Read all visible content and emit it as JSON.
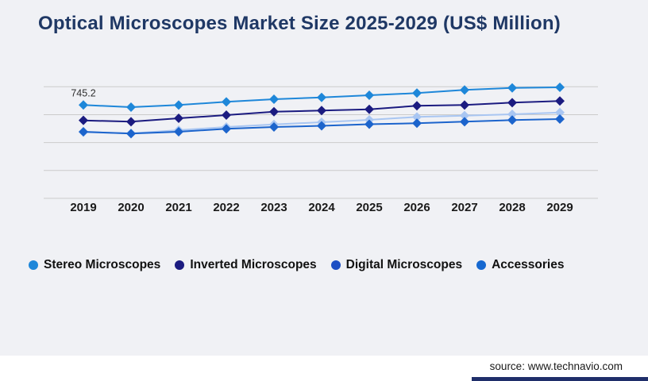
{
  "title": "Optical Microscopes Market Size 2025-2029 (US$ Million)",
  "source_text": "source: www.technavio.com",
  "theme": {
    "background": "#f0f1f5",
    "title_color": "#1f3865",
    "grid_color": "#cbcbcb",
    "axis_label_color": "#1a1a1a",
    "legend_text_color": "#111111",
    "annotation_color": "#2e2e2e",
    "footer_bar_color": "#1f2e6a",
    "footer_bg": "#ffffff"
  },
  "chart_data": {
    "type": "line",
    "title": "Optical Microscopes Market Size 2025-2029 (US$ Million)",
    "x": [
      "2019",
      "2020",
      "2021",
      "2022",
      "2023",
      "2024",
      "2025",
      "2026",
      "2027",
      "2028",
      "2029"
    ],
    "xlabel": "",
    "ylabel": "US$ Million",
    "ylim": [
      0,
      891
    ],
    "gridline_count": 5,
    "y_axis_labels_visible": false,
    "grid": true,
    "marker": "diamond",
    "legend_position": "bottom-left",
    "series": [
      {
        "name": "Stereo Microscopes",
        "line_color": "#1e87d9",
        "legend_color": "#1e87d9",
        "values": [
          745.2,
          728.0,
          745.0,
          770.5,
          791.5,
          806.0,
          823.0,
          840.5,
          865.5,
          882.0,
          886.5
        ]
      },
      {
        "name": "Inverted Microscopes",
        "line_color": "#1b1b80",
        "legend_color": "#1b1b80",
        "values": [
          622.5,
          612.0,
          639.5,
          664.5,
          692.0,
          701.0,
          711.0,
          739.0,
          745.0,
          764.0,
          777.0
        ]
      },
      {
        "name": "Digital Microscopes",
        "line_color": "#a9c6f2",
        "legend_color": "#1d4fc4",
        "values": [
          528.5,
          519.0,
          544.5,
          570.0,
          590.5,
          607.5,
          626.5,
          650.0,
          660.5,
          671.0,
          685.5
        ]
      },
      {
        "name": "Accessories",
        "line_color": "#1c64cc",
        "legend_color": "#1668d0",
        "values": [
          531.5,
          517.0,
          531.5,
          555.0,
          569.5,
          579.0,
          592.0,
          599.5,
          612.0,
          625.0,
          633.0
        ]
      }
    ],
    "annotations": [
      {
        "text": "745.2",
        "series_index": 0,
        "point_index": 0
      }
    ]
  }
}
